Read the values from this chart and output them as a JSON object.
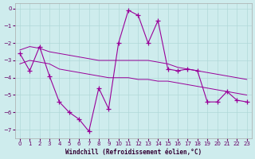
{
  "xlabel": "Windchill (Refroidissement éolien,°C)",
  "bg_color": "#ceeced",
  "grid_color": "#b0d8d8",
  "line_color": "#990099",
  "x_ticks": [
    0,
    1,
    2,
    3,
    4,
    5,
    6,
    7,
    8,
    9,
    10,
    11,
    12,
    13,
    14,
    15,
    16,
    17,
    18,
    19,
    20,
    21,
    22,
    23
  ],
  "ylim": [
    -7.5,
    0.3
  ],
  "xlim": [
    -0.5,
    23.5
  ],
  "yticks": [
    0,
    -1,
    -2,
    -3,
    -4,
    -5,
    -6,
    -7
  ],
  "series": {
    "zigzag": {
      "x": [
        0,
        1,
        2,
        3,
        4,
        5,
        6,
        7,
        8,
        9,
        10,
        11,
        12,
        13,
        14,
        15,
        16,
        17,
        18,
        19,
        20,
        21,
        22,
        23
      ],
      "y": [
        -2.6,
        -3.6,
        -2.2,
        -3.9,
        -5.4,
        -6.0,
        -6.4,
        -7.1,
        -4.6,
        -5.8,
        -2.0,
        -0.1,
        -0.4,
        -2.0,
        -0.7,
        -3.5,
        -3.6,
        -3.5,
        -3.6,
        -5.4,
        -5.4,
        -4.8,
        -5.3,
        -5.4
      ]
    },
    "smooth1": {
      "x": [
        0,
        1,
        2,
        3,
        4,
        5,
        6,
        7,
        8,
        9,
        10,
        11,
        12,
        13,
        14,
        15,
        16,
        17,
        18,
        19,
        20,
        21,
        22,
        23
      ],
      "y": [
        -2.4,
        -2.2,
        -2.3,
        -2.5,
        -2.6,
        -2.7,
        -2.8,
        -2.9,
        -3.0,
        -3.0,
        -3.0,
        -3.0,
        -3.0,
        -3.0,
        -3.1,
        -3.2,
        -3.4,
        -3.5,
        -3.6,
        -3.7,
        -3.8,
        -3.9,
        -4.0,
        -4.1
      ]
    },
    "smooth2": {
      "x": [
        0,
        1,
        2,
        3,
        4,
        5,
        6,
        7,
        8,
        9,
        10,
        11,
        12,
        13,
        14,
        15,
        16,
        17,
        18,
        19,
        20,
        21,
        22,
        23
      ],
      "y": [
        -3.2,
        -3.0,
        -3.1,
        -3.2,
        -3.5,
        -3.6,
        -3.7,
        -3.8,
        -3.9,
        -4.0,
        -4.0,
        -4.0,
        -4.1,
        -4.1,
        -4.2,
        -4.2,
        -4.3,
        -4.4,
        -4.5,
        -4.6,
        -4.7,
        -4.8,
        -4.9,
        -5.0
      ]
    }
  }
}
